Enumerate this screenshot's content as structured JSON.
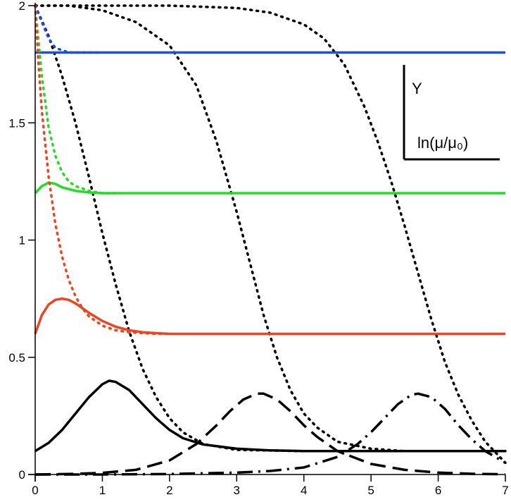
{
  "chart_data": {
    "type": "line",
    "xlim": [
      0,
      7
    ],
    "ylim": [
      0,
      2
    ],
    "x_ticks": [
      0,
      1,
      2,
      3,
      4,
      5,
      6,
      7
    ],
    "y_ticks": [
      {
        "value": 0,
        "label": "0"
      },
      {
        "value": 0.5,
        "label": "0.5"
      },
      {
        "value": 1,
        "label": "1"
      },
      {
        "value": 1.5,
        "label": "1.5"
      },
      {
        "value": 2,
        "label": "2"
      }
    ],
    "legend_box": {
      "ylabel": "Y",
      "xlabel": "ln(μ/μ₀)",
      "placement": "top-right"
    },
    "grid": false,
    "series": [
      {
        "style": "dotted",
        "color": "#000000",
        "x": [
          0,
          0.2,
          0.4,
          0.6,
          0.8,
          1.0,
          1.2,
          1.4,
          1.6,
          1.8,
          2.0,
          2.2,
          2.5,
          3.0,
          4.0,
          5.0,
          6.0,
          7.0
        ],
        "y": [
          2.0,
          1.87,
          1.7,
          1.5,
          1.27,
          1.03,
          0.81,
          0.61,
          0.45,
          0.33,
          0.24,
          0.18,
          0.13,
          0.105,
          0.1,
          0.1,
          0.1,
          0.1
        ]
      },
      {
        "style": "dotted",
        "color": "#000000",
        "x": [
          0,
          0.5,
          1.0,
          1.5,
          2.0,
          2.4,
          2.7,
          3.0,
          3.2,
          3.4,
          3.6,
          3.8,
          4.0,
          4.2,
          4.5,
          5.0,
          5.5,
          6.0,
          7.0
        ],
        "y": [
          2.0,
          2.0,
          1.98,
          1.93,
          1.83,
          1.66,
          1.42,
          1.12,
          0.9,
          0.68,
          0.5,
          0.36,
          0.26,
          0.2,
          0.14,
          0.11,
          0.1,
          0.1,
          0.1
        ]
      },
      {
        "style": "dotted",
        "color": "#000000",
        "x": [
          0,
          1.0,
          2.0,
          3.0,
          3.5,
          4.0,
          4.3,
          4.6,
          4.9,
          5.1,
          5.3,
          5.5,
          5.7,
          5.9,
          6.1,
          6.3,
          6.5,
          6.7,
          6.9,
          7.0
        ],
        "y": [
          2.0,
          2.0,
          2.0,
          1.99,
          1.97,
          1.92,
          1.86,
          1.75,
          1.57,
          1.42,
          1.25,
          1.06,
          0.86,
          0.66,
          0.48,
          0.34,
          0.23,
          0.14,
          0.08,
          0.05
        ]
      },
      {
        "style": "dotted",
        "color": "#1f4fd8",
        "x": [
          0,
          0.1,
          0.2,
          0.3,
          0.4,
          0.5,
          0.7,
          1.0
        ],
        "y": [
          2.0,
          1.93,
          1.86,
          1.82,
          1.81,
          1.8,
          1.8,
          1.8
        ]
      },
      {
        "style": "solid",
        "color": "#1f4fd8",
        "x": [
          0,
          7.0
        ],
        "y": [
          1.8,
          1.8
        ]
      },
      {
        "style": "dotted",
        "color": "#22dd22",
        "x": [
          0,
          0.05,
          0.1,
          0.2,
          0.3,
          0.4,
          0.5,
          0.6,
          0.8,
          1.0,
          1.2
        ],
        "y": [
          2.0,
          1.85,
          1.7,
          1.48,
          1.36,
          1.29,
          1.25,
          1.23,
          1.21,
          1.2,
          1.2
        ]
      },
      {
        "style": "solid",
        "color": "#22dd22",
        "x": [
          0,
          0.1,
          0.2,
          0.3,
          0.4,
          0.6,
          0.8,
          1.0,
          1.5,
          2.0,
          3.0,
          7.0
        ],
        "y": [
          1.2,
          1.23,
          1.245,
          1.24,
          1.225,
          1.21,
          1.203,
          1.2,
          1.2,
          1.2,
          1.2,
          1.2
        ]
      },
      {
        "style": "dotted",
        "color": "#ee4422",
        "x": [
          0,
          0.05,
          0.1,
          0.2,
          0.3,
          0.4,
          0.5,
          0.6,
          0.7,
          0.8,
          1.0,
          1.2,
          1.4,
          1.6,
          1.8,
          2.0
        ],
        "y": [
          2.0,
          1.75,
          1.55,
          1.27,
          1.07,
          0.93,
          0.83,
          0.76,
          0.71,
          0.675,
          0.635,
          0.615,
          0.607,
          0.603,
          0.6,
          0.6
        ]
      },
      {
        "style": "solid",
        "color": "#ee4422",
        "x": [
          0,
          0.1,
          0.2,
          0.3,
          0.4,
          0.5,
          0.6,
          0.7,
          0.8,
          1.0,
          1.2,
          1.4,
          1.6,
          1.8,
          2.0,
          2.5,
          7.0
        ],
        "y": [
          0.6,
          0.68,
          0.725,
          0.745,
          0.75,
          0.745,
          0.73,
          0.71,
          0.69,
          0.655,
          0.63,
          0.615,
          0.607,
          0.603,
          0.6,
          0.6,
          0.6
        ]
      },
      {
        "style": "solid",
        "color": "#000000",
        "x": [
          0,
          0.2,
          0.4,
          0.6,
          0.8,
          1.0,
          1.1,
          1.2,
          1.4,
          1.6,
          1.8,
          2.0,
          2.2,
          2.5,
          3.0,
          3.5,
          4.0,
          5.0,
          6.0,
          7.0
        ],
        "y": [
          0.1,
          0.135,
          0.19,
          0.26,
          0.33,
          0.385,
          0.4,
          0.395,
          0.36,
          0.3,
          0.24,
          0.19,
          0.155,
          0.128,
          0.11,
          0.103,
          0.1,
          0.1,
          0.1,
          0.1
        ]
      },
      {
        "style": "dashed",
        "color": "#000000",
        "x": [
          0,
          0.5,
          1.0,
          1.5,
          2.0,
          2.4,
          2.7,
          2.9,
          3.1,
          3.3,
          3.4,
          3.6,
          3.8,
          4.0,
          4.2,
          4.5,
          5.0,
          5.5,
          6.0,
          6.5,
          7.0
        ],
        "y": [
          0.0,
          0.002,
          0.007,
          0.02,
          0.06,
          0.13,
          0.21,
          0.27,
          0.32,
          0.345,
          0.345,
          0.32,
          0.27,
          0.21,
          0.16,
          0.1,
          0.045,
          0.02,
          0.008,
          0.003,
          0.001
        ]
      },
      {
        "style": "dashdot",
        "color": "#000000",
        "x": [
          0,
          1.0,
          2.0,
          3.0,
          3.5,
          4.0,
          4.5,
          4.8,
          5.0,
          5.2,
          5.4,
          5.6,
          5.7,
          5.9,
          6.1,
          6.3,
          6.5,
          6.7,
          7.0
        ],
        "y": [
          0.0,
          0.0,
          0.002,
          0.008,
          0.015,
          0.03,
          0.075,
          0.13,
          0.18,
          0.24,
          0.3,
          0.34,
          0.345,
          0.33,
          0.28,
          0.21,
          0.15,
          0.1,
          0.05
        ]
      }
    ]
  }
}
